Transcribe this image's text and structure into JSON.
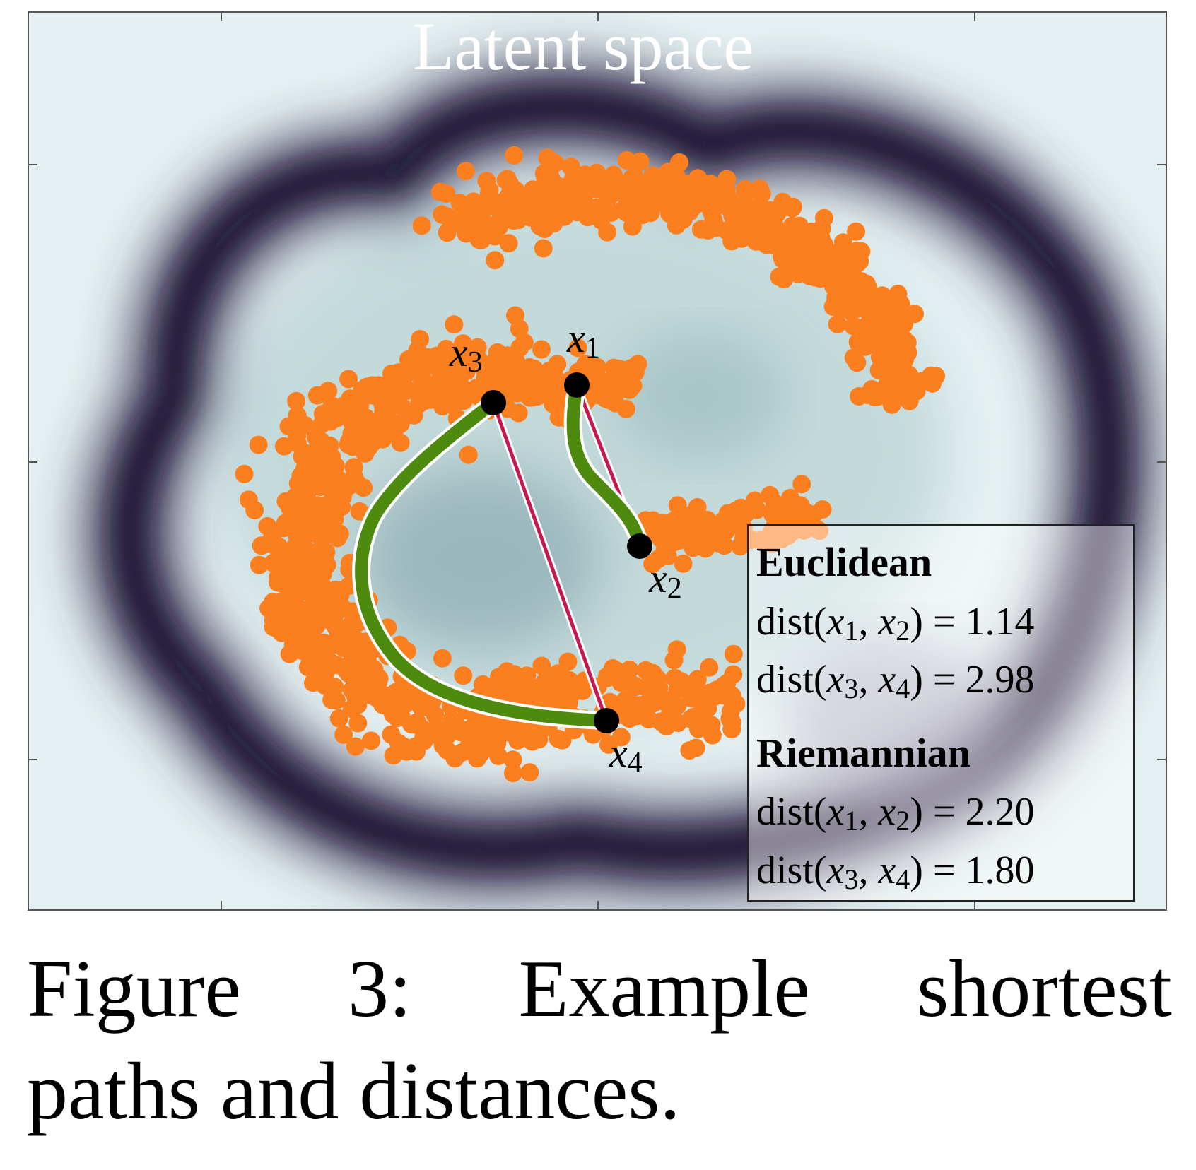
{
  "figure": {
    "title": "Latent space",
    "point_labels": [
      {
        "id": "x1",
        "base": "x",
        "sub": "1"
      },
      {
        "id": "x2",
        "base": "x",
        "sub": "2"
      },
      {
        "id": "x3",
        "base": "x",
        "sub": "3"
      },
      {
        "id": "x4",
        "base": "x",
        "sub": "4"
      }
    ],
    "legend": {
      "euclidean_heading": "Euclidean",
      "riemannian_heading": "Riemannian",
      "dist_word": "dist",
      "euclidean": [
        {
          "a": "1",
          "b": "2",
          "value": "1.14"
        },
        {
          "a": "3",
          "b": "4",
          "value": "2.98"
        }
      ],
      "riemannian": [
        {
          "a": "1",
          "b": "2",
          "value": "2.20"
        },
        {
          "a": "3",
          "b": "4",
          "value": "1.80"
        }
      ]
    },
    "colors": {
      "points": "#fb7f1e",
      "riemannian_path": "#4e8a0e",
      "euclidean_path": "#c8164f",
      "background_dark": "#3a3550",
      "background_light": "#dfeeee"
    }
  },
  "caption": {
    "line1_words": [
      "Figure",
      "3:",
      "Example",
      "shortest"
    ],
    "line2": "paths and distances."
  }
}
